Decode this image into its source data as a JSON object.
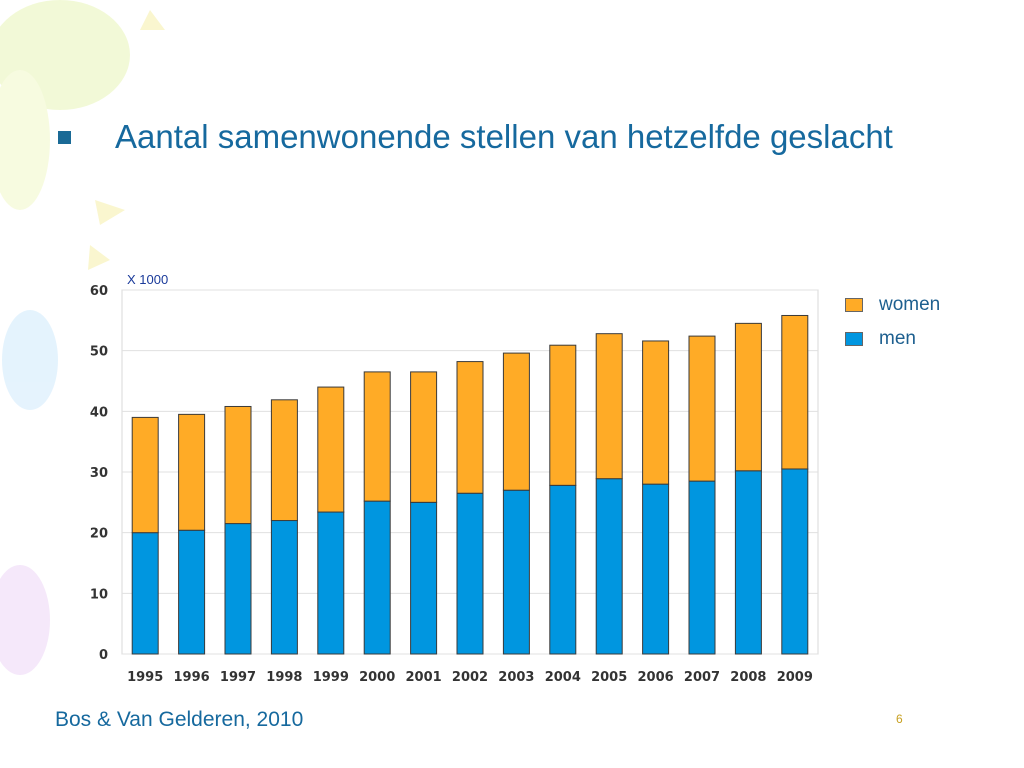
{
  "slide": {
    "title": "Aantal samenwonende stellen van hetzelfde geslacht",
    "source": "Bos & Van Gelderen, 2010",
    "page_number": "6"
  },
  "colors": {
    "men": "#0096e0",
    "women": "#ffab26",
    "title": "#16699e",
    "grid": "#e0e0e0"
  },
  "chart_data": {
    "type": "bar",
    "stacked": true,
    "unit_label": "X 1000",
    "categories": [
      "1995",
      "1996",
      "1997",
      "1998",
      "1999",
      "2000",
      "2001",
      "2002",
      "2003",
      "2004",
      "2005",
      "2006",
      "2007",
      "2008",
      "2009"
    ],
    "series": [
      {
        "name": "men",
        "values": [
          20,
          20.4,
          21.5,
          22,
          23.4,
          25.2,
          25,
          26.5,
          27,
          27.8,
          28.9,
          28,
          28.5,
          30.2,
          30.5
        ]
      },
      {
        "name": "women",
        "values": [
          19,
          19.1,
          19.3,
          19.9,
          20.6,
          21.3,
          21.5,
          21.7,
          22.6,
          23.1,
          23.9,
          23.6,
          23.9,
          24.3,
          25.3
        ]
      }
    ],
    "ylim": [
      0,
      60
    ],
    "yticks": [
      0,
      10,
      20,
      30,
      40,
      50,
      60
    ],
    "grid": true,
    "legend": {
      "position": "right",
      "entries": [
        {
          "label": "women",
          "series": "women"
        },
        {
          "label": "men",
          "series": "men"
        }
      ]
    }
  }
}
